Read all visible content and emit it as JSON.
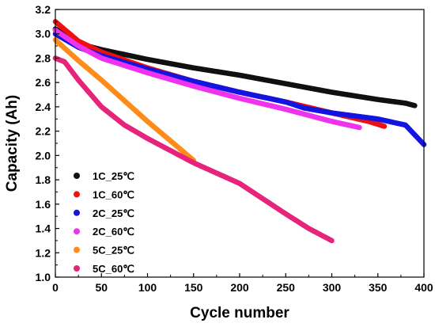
{
  "chart_data": {
    "type": "scatter",
    "xlabel": "Cycle number",
    "ylabel": "Capacity (Ah)",
    "xlim": [
      0,
      400
    ],
    "ylim": [
      1.0,
      3.2
    ],
    "x_ticks": [
      "0",
      "50",
      "100",
      "150",
      "200",
      "250",
      "300",
      "350",
      "400"
    ],
    "y_ticks": [
      "1.0",
      "1.2",
      "1.4",
      "1.6",
      "1.8",
      "2.0",
      "2.2",
      "2.4",
      "2.6",
      "2.8",
      "3.0",
      "3.2"
    ],
    "grid": false,
    "legend_position": "bottom-left",
    "series": [
      {
        "name": "1C_25℃",
        "color": "#111111",
        "points": [
          [
            0,
            3.04
          ],
          [
            25,
            2.92
          ],
          [
            50,
            2.87
          ],
          [
            100,
            2.79
          ],
          [
            150,
            2.72
          ],
          [
            200,
            2.66
          ],
          [
            250,
            2.59
          ],
          [
            300,
            2.52
          ],
          [
            350,
            2.46
          ],
          [
            380,
            2.43
          ],
          [
            390,
            2.41
          ]
        ]
      },
      {
        "name": "1C_60℃",
        "color": "#ee1111",
        "points": [
          [
            0,
            3.1
          ],
          [
            25,
            2.94
          ],
          [
            50,
            2.85
          ],
          [
            100,
            2.72
          ],
          [
            150,
            2.61
          ],
          [
            200,
            2.52
          ],
          [
            250,
            2.44
          ],
          [
            300,
            2.35
          ],
          [
            340,
            2.28
          ],
          [
            357,
            2.24
          ]
        ]
      },
      {
        "name": "2C_25℃",
        "color": "#1515e0",
        "points": [
          [
            0,
            3.0
          ],
          [
            25,
            2.89
          ],
          [
            50,
            2.82
          ],
          [
            100,
            2.71
          ],
          [
            150,
            2.61
          ],
          [
            200,
            2.52
          ],
          [
            250,
            2.44
          ],
          [
            270,
            2.39
          ],
          [
            300,
            2.35
          ],
          [
            350,
            2.3
          ],
          [
            380,
            2.25
          ],
          [
            400,
            2.09
          ]
        ]
      },
      {
        "name": "2C_60℃",
        "color": "#ee33ee",
        "points": [
          [
            0,
            3.03
          ],
          [
            25,
            2.9
          ],
          [
            50,
            2.8
          ],
          [
            100,
            2.68
          ],
          [
            150,
            2.57
          ],
          [
            200,
            2.47
          ],
          [
            250,
            2.38
          ],
          [
            300,
            2.28
          ],
          [
            330,
            2.23
          ]
        ]
      },
      {
        "name": "5C_25℃",
        "color": "#ff8c1a",
        "points": [
          [
            0,
            2.95
          ],
          [
            25,
            2.78
          ],
          [
            50,
            2.62
          ],
          [
            75,
            2.45
          ],
          [
            100,
            2.28
          ],
          [
            125,
            2.12
          ],
          [
            150,
            1.96
          ]
        ]
      },
      {
        "name": "5C_60℃",
        "color": "#e6247a",
        "points": [
          [
            0,
            2.8
          ],
          [
            10,
            2.77
          ],
          [
            25,
            2.62
          ],
          [
            50,
            2.4
          ],
          [
            75,
            2.25
          ],
          [
            100,
            2.14
          ],
          [
            125,
            2.04
          ],
          [
            150,
            1.94
          ],
          [
            200,
            1.77
          ],
          [
            250,
            1.52
          ],
          [
            275,
            1.4
          ],
          [
            300,
            1.3
          ]
        ]
      }
    ]
  }
}
